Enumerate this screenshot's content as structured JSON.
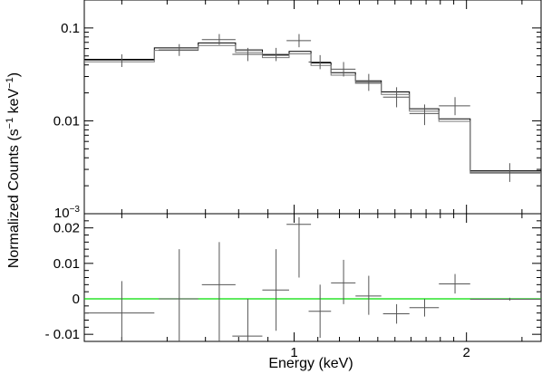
{
  "chart_data": [
    {
      "type": "line",
      "panel": "spectrum",
      "ylabel_main": "Normalized Counts (s",
      "ylabel_sup1": "−1",
      "ylabel_mid": " keV",
      "ylabel_sup2": "−1",
      "ylabel_end": ")",
      "yscale": "log",
      "ylim": [
        0.001,
        0.2
      ],
      "xlim": [
        0.43,
        2.7
      ],
      "grid": false,
      "yticks": [
        {
          "value": 0.1,
          "label": "0.1"
        },
        {
          "value": 0.01,
          "label": "0.01"
        }
      ],
      "ytick_min_label": {
        "base": "10",
        "exp": "−3"
      },
      "data_points": [
        {
          "x": 0.5,
          "xerr": 0.07,
          "y": 0.045,
          "ylo": 0.038,
          "yhi": 0.052
        },
        {
          "x": 0.63,
          "xerr": 0.05,
          "y": 0.058,
          "ylo": 0.05,
          "yhi": 0.067
        },
        {
          "x": 0.74,
          "xerr": 0.05,
          "y": 0.075,
          "ylo": 0.066,
          "yhi": 0.086
        },
        {
          "x": 0.83,
          "xerr": 0.05,
          "y": 0.052,
          "ylo": 0.044,
          "yhi": 0.061
        },
        {
          "x": 0.93,
          "xerr": 0.05,
          "y": 0.052,
          "ylo": 0.044,
          "yhi": 0.061
        },
        {
          "x": 1.02,
          "xerr": 0.05,
          "y": 0.073,
          "ylo": 0.062,
          "yhi": 0.086
        },
        {
          "x": 1.11,
          "xerr": 0.05,
          "y": 0.043,
          "ylo": 0.036,
          "yhi": 0.051
        },
        {
          "x": 1.22,
          "xerr": 0.06,
          "y": 0.036,
          "ylo": 0.03,
          "yhi": 0.043
        },
        {
          "x": 1.35,
          "xerr": 0.07,
          "y": 0.026,
          "ylo": 0.021,
          "yhi": 0.032
        },
        {
          "x": 1.51,
          "xerr": 0.08,
          "y": 0.018,
          "ylo": 0.014,
          "yhi": 0.023
        },
        {
          "x": 1.69,
          "xerr": 0.1,
          "y": 0.012,
          "ylo": 0.009,
          "yhi": 0.015
        },
        {
          "x": 1.91,
          "xerr": 0.12,
          "y": 0.0145,
          "ylo": 0.0115,
          "yhi": 0.018
        },
        {
          "x": 2.38,
          "xerr": 0.35,
          "y": 0.0028,
          "ylo": 0.0022,
          "yhi": 0.0035
        }
      ],
      "model_steps": [
        {
          "x0": 0.43,
          "x1": 0.57,
          "y": 0.046
        },
        {
          "x0": 0.57,
          "x1": 0.68,
          "y": 0.061
        },
        {
          "x0": 0.68,
          "x1": 0.79,
          "y": 0.069
        },
        {
          "x0": 0.79,
          "x1": 0.88,
          "y": 0.058
        },
        {
          "x0": 0.88,
          "x1": 0.98,
          "y": 0.051
        },
        {
          "x0": 0.98,
          "x1": 1.07,
          "y": 0.056
        },
        {
          "x0": 1.07,
          "x1": 1.16,
          "y": 0.042
        },
        {
          "x0": 1.16,
          "x1": 1.28,
          "y": 0.033
        },
        {
          "x0": 1.28,
          "x1": 1.42,
          "y": 0.027
        },
        {
          "x0": 1.42,
          "x1": 1.59,
          "y": 0.0205
        },
        {
          "x0": 1.59,
          "x1": 1.79,
          "y": 0.0135
        },
        {
          "x0": 1.79,
          "x1": 2.03,
          "y": 0.0105
        },
        {
          "x0": 2.03,
          "x1": 2.7,
          "y": 0.0029
        }
      ],
      "colors": {
        "data": "#555555",
        "model": "#000000"
      }
    },
    {
      "type": "scatter",
      "panel": "residuals",
      "ylim": [
        -0.012,
        0.024
      ],
      "xlim": [
        0.43,
        2.7
      ],
      "xlabel": "Energy (keV)",
      "xticks": [
        {
          "value": 1,
          "label": "1"
        },
        {
          "value": 2,
          "label": "2"
        }
      ],
      "yticks": [
        {
          "value": 0.02,
          "label": "0.02"
        },
        {
          "value": 0.01,
          "label": "0.01"
        },
        {
          "value": 0,
          "label": "0"
        },
        {
          "value": -0.01,
          "label": "- 0.01"
        }
      ],
      "zero_line": 0,
      "residuals": [
        {
          "x": 0.5,
          "xerr": 0.07,
          "y": -0.004,
          "ylo": -0.013,
          "yhi": 0.005
        },
        {
          "x": 0.63,
          "xerr": 0.05,
          "y": 0.0,
          "ylo": -0.014,
          "yhi": 0.014
        },
        {
          "x": 0.74,
          "xerr": 0.05,
          "y": 0.004,
          "ylo": -0.012,
          "yhi": 0.016
        },
        {
          "x": 0.83,
          "xerr": 0.05,
          "y": -0.0105,
          "ylo": -0.013,
          "yhi": 0.0
        },
        {
          "x": 0.93,
          "xerr": 0.05,
          "y": 0.0025,
          "ylo": -0.009,
          "yhi": 0.014
        },
        {
          "x": 1.02,
          "xerr": 0.05,
          "y": 0.021,
          "ylo": 0.006,
          "yhi": 0.023
        },
        {
          "x": 1.11,
          "xerr": 0.05,
          "y": -0.0035,
          "ylo": -0.011,
          "yhi": 0.004
        },
        {
          "x": 1.22,
          "xerr": 0.06,
          "y": 0.0045,
          "ylo": -0.0015,
          "yhi": 0.011
        },
        {
          "x": 1.35,
          "xerr": 0.07,
          "y": 0.0008,
          "ylo": -0.0045,
          "yhi": 0.0065
        },
        {
          "x": 1.51,
          "xerr": 0.08,
          "y": -0.0042,
          "ylo": -0.007,
          "yhi": -0.0015
        },
        {
          "x": 1.69,
          "xerr": 0.1,
          "y": -0.0025,
          "ylo": -0.005,
          "yhi": 0.0
        },
        {
          "x": 1.91,
          "xerr": 0.12,
          "y": 0.0042,
          "ylo": 0.0015,
          "yhi": 0.007
        },
        {
          "x": 2.38,
          "xerr": 0.35,
          "y": -0.0001,
          "ylo": -0.0005,
          "yhi": 0.0003
        }
      ],
      "colors": {
        "residual": "#555555",
        "zero_line": "#00dd00"
      }
    }
  ]
}
